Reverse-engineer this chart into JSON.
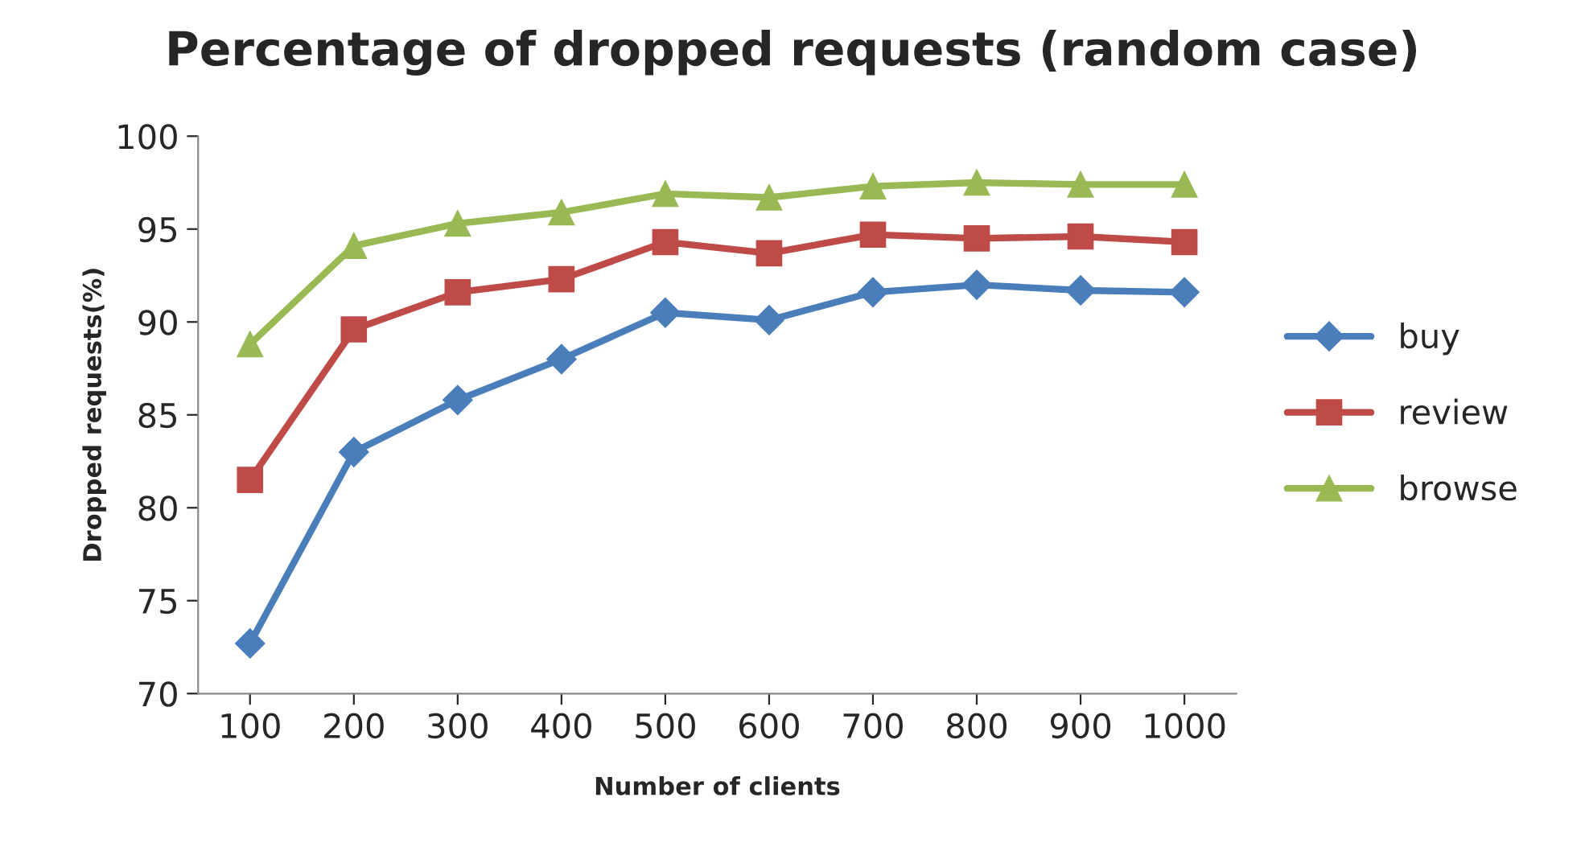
{
  "chart_data": {
    "type": "line",
    "title": "Percentage of dropped requests (random case)",
    "xlabel": "Number of clients",
    "ylabel": "Dropped requests(%)",
    "categories": [
      "100",
      "200",
      "300",
      "400",
      "500",
      "600",
      "700",
      "800",
      "900",
      "1000"
    ],
    "series": [
      {
        "name": "buy",
        "color": "#4a7ebb",
        "marker": "diamond",
        "values": [
          72.7,
          83.0,
          85.8,
          88.0,
          90.5,
          90.1,
          91.6,
          92.0,
          91.7,
          91.6
        ]
      },
      {
        "name": "review",
        "color": "#be4b48",
        "marker": "square",
        "values": [
          81.5,
          89.6,
          91.6,
          92.3,
          94.3,
          93.7,
          94.7,
          94.5,
          94.6,
          94.3
        ]
      },
      {
        "name": "browse",
        "color": "#98b954",
        "marker": "triangle",
        "values": [
          88.8,
          94.1,
          95.3,
          95.9,
          96.9,
          96.7,
          97.3,
          97.5,
          97.4,
          97.4
        ]
      }
    ],
    "ylim": [
      70,
      100
    ],
    "yticks": [
      70,
      75,
      80,
      85,
      90,
      95,
      100
    ],
    "grid": false,
    "legend": "right",
    "line_style": "solid"
  }
}
